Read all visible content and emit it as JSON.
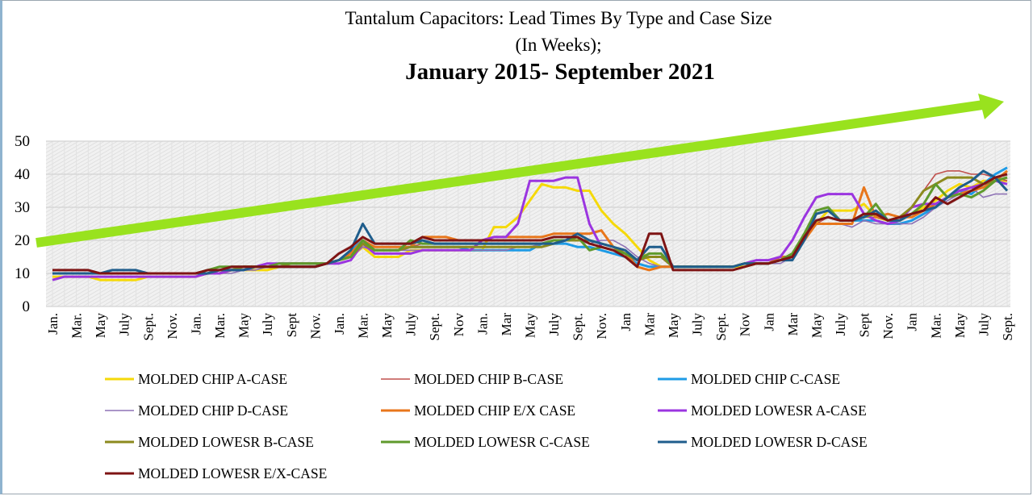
{
  "chart_data": {
    "type": "line",
    "title": "Tantalum  Capacitors: Lead Times By Type and Case Size",
    "subtitle": "(In Weeks);",
    "date_range": "January 2015- September 2021",
    "xlabel": "",
    "ylabel": "",
    "ylim": [
      0,
      50
    ],
    "yticks": [
      0,
      10,
      20,
      30,
      40,
      50
    ],
    "grid": true,
    "legend_position": "bottom",
    "x_period": "monthly, Jan 2015 - Sept 2021",
    "xtick_labels": [
      "Jan.",
      "Mar.",
      "May",
      "July",
      "Sept.",
      "Nov.",
      "Jan.",
      "Mar.",
      "May",
      "July",
      "Sept",
      "Nov.",
      "Jan.",
      "Mar.",
      "May",
      "July",
      "Sept.",
      "Nov",
      "Jan.",
      "Mar",
      "May",
      "July",
      "Sept.",
      "Nov.",
      "Jan",
      "Mar",
      "May",
      "July",
      "Sept.",
      "Nov",
      "Jan",
      "Mar",
      "May",
      "July",
      "Sept",
      "Nov.",
      "Jan",
      "Mar.",
      "May",
      "July",
      "Sept."
    ],
    "trend_arrow_color": "#99e21e",
    "series": [
      {
        "name": "MOLDED CHIP A-CASE",
        "color": "#f5d90a",
        "thin": false,
        "values": [
          9,
          9,
          9,
          9,
          8,
          8,
          8,
          8,
          9,
          9,
          9,
          9,
          9,
          10,
          10,
          11,
          11,
          11,
          11,
          12,
          12,
          12,
          12,
          13,
          14,
          15,
          18,
          15,
          15,
          15,
          17,
          17,
          17,
          17,
          17,
          17,
          17,
          24,
          24,
          27,
          32,
          37,
          36,
          36,
          35,
          35,
          29,
          25,
          22,
          18,
          14,
          12,
          12,
          12,
          12,
          12,
          12,
          12,
          12,
          13,
          13,
          14,
          15,
          21,
          25,
          29,
          29,
          29,
          31,
          27,
          26,
          27,
          28,
          30,
          32,
          35,
          37,
          36,
          38,
          38,
          38
        ]
      },
      {
        "name": "MOLDED CHIP B-CASE",
        "color": "#c0504d",
        "thin": true,
        "values": [
          10,
          10,
          10,
          10,
          10,
          10,
          10,
          10,
          10,
          10,
          10,
          10,
          10,
          10,
          11,
          11,
          12,
          12,
          12,
          12,
          13,
          13,
          13,
          13,
          14,
          16,
          20,
          18,
          18,
          18,
          18,
          19,
          19,
          19,
          19,
          19,
          19,
          19,
          19,
          19,
          19,
          19,
          20,
          20,
          20,
          20,
          19,
          18,
          16,
          13,
          12,
          12,
          12,
          12,
          12,
          12,
          12,
          12,
          13,
          13,
          13,
          14,
          16,
          21,
          25,
          27,
          26,
          26,
          27,
          27,
          26,
          27,
          30,
          35,
          40,
          41,
          41,
          40,
          40,
          39,
          38
        ]
      },
      {
        "name": "MOLDED CHIP C-CASE",
        "color": "#1e9be6",
        "thin": false,
        "values": [
          10,
          10,
          10,
          10,
          10,
          10,
          10,
          10,
          10,
          10,
          10,
          10,
          10,
          10,
          11,
          11,
          11,
          12,
          12,
          12,
          12,
          12,
          12,
          13,
          14,
          17,
          20,
          17,
          17,
          17,
          18,
          18,
          18,
          18,
          18,
          17,
          17,
          17,
          17,
          17,
          17,
          19,
          19,
          19,
          18,
          18,
          17,
          16,
          15,
          13,
          12,
          12,
          12,
          12,
          12,
          12,
          12,
          12,
          13,
          13,
          13,
          14,
          15,
          20,
          26,
          27,
          26,
          26,
          26,
          26,
          25,
          25,
          26,
          28,
          30,
          33,
          35,
          34,
          37,
          40,
          42
        ]
      },
      {
        "name": "MOLDED CHIP D-CASE",
        "color": "#8e72b5",
        "thin": true,
        "values": [
          10,
          10,
          10,
          10,
          10,
          10,
          10,
          10,
          10,
          10,
          10,
          10,
          10,
          10,
          10,
          10,
          11,
          11,
          12,
          12,
          13,
          13,
          13,
          13,
          14,
          15,
          18,
          17,
          17,
          17,
          17,
          17,
          17,
          17,
          17,
          17,
          17,
          17,
          17,
          18,
          18,
          19,
          20,
          20,
          20,
          19,
          20,
          20,
          18,
          15,
          13,
          12,
          12,
          12,
          12,
          12,
          12,
          12,
          13,
          13,
          13,
          13,
          15,
          20,
          25,
          25,
          25,
          24,
          26,
          25,
          25,
          25,
          25,
          27,
          30,
          32,
          34,
          36,
          33,
          34,
          34
        ]
      },
      {
        "name": "MOLDED CHIP E/X CASE",
        "color": "#e8761b",
        "thin": false,
        "values": [
          10,
          10,
          10,
          10,
          10,
          10,
          10,
          10,
          10,
          10,
          10,
          10,
          10,
          10,
          10,
          11,
          12,
          12,
          12,
          12,
          12,
          12,
          12,
          13,
          14,
          16,
          20,
          18,
          18,
          18,
          18,
          21,
          21,
          21,
          20,
          20,
          20,
          21,
          21,
          21,
          21,
          21,
          22,
          22,
          22,
          22,
          23,
          18,
          16,
          12,
          11,
          12,
          12,
          12,
          12,
          12,
          12,
          12,
          13,
          13,
          13,
          15,
          15,
          20,
          25,
          25,
          25,
          25,
          36,
          27,
          28,
          27,
          27,
          29,
          31,
          33,
          34,
          35,
          36,
          38,
          41
        ]
      },
      {
        "name": "MOLDED LOWESR A-CASE",
        "color": "#9b35e0",
        "thin": false,
        "values": [
          8,
          9,
          9,
          9,
          9,
          9,
          9,
          9,
          9,
          9,
          9,
          9,
          9,
          10,
          10,
          11,
          11,
          12,
          13,
          13,
          13,
          13,
          13,
          13,
          13,
          14,
          19,
          16,
          16,
          16,
          16,
          17,
          17,
          17,
          17,
          17,
          20,
          21,
          21,
          25,
          38,
          38,
          38,
          39,
          39,
          25,
          18,
          17,
          16,
          14,
          15,
          15,
          12,
          12,
          12,
          12,
          12,
          12,
          13,
          14,
          14,
          15,
          20,
          27,
          33,
          34,
          34,
          34,
          28,
          26,
          25,
          26,
          30,
          31,
          31,
          33,
          35,
          36,
          37,
          38,
          37
        ]
      },
      {
        "name": "MOLDED LOWESR B-CASE",
        "color": "#8c8a1e",
        "thin": false,
        "values": [
          10,
          10,
          10,
          10,
          10,
          10,
          10,
          10,
          10,
          10,
          10,
          10,
          10,
          10,
          11,
          11,
          12,
          12,
          12,
          12,
          13,
          13,
          13,
          13,
          14,
          15,
          19,
          17,
          17,
          17,
          18,
          18,
          18,
          18,
          18,
          18,
          18,
          18,
          18,
          18,
          18,
          18,
          19,
          20,
          20,
          20,
          19,
          18,
          16,
          14,
          15,
          15,
          12,
          12,
          12,
          12,
          12,
          12,
          13,
          13,
          13,
          14,
          16,
          21,
          28,
          29,
          26,
          26,
          27,
          28,
          26,
          27,
          30,
          35,
          37,
          39,
          39,
          39,
          37,
          38,
          39
        ]
      },
      {
        "name": "MOLDED LOWESR C-CASE",
        "color": "#5f9a2c",
        "thin": false,
        "values": [
          10,
          10,
          10,
          10,
          10,
          10,
          10,
          10,
          10,
          10,
          10,
          10,
          10,
          11,
          12,
          12,
          12,
          12,
          12,
          13,
          13,
          13,
          13,
          13,
          14,
          15,
          20,
          17,
          17,
          17,
          20,
          19,
          19,
          19,
          19,
          19,
          19,
          19,
          19,
          19,
          19,
          19,
          20,
          20,
          21,
          17,
          18,
          17,
          16,
          14,
          16,
          16,
          12,
          12,
          12,
          12,
          12,
          12,
          13,
          13,
          13,
          14,
          16,
          22,
          29,
          30,
          26,
          26,
          27,
          31,
          26,
          26,
          28,
          31,
          37,
          33,
          34,
          33,
          35,
          38,
          39
        ]
      },
      {
        "name": "MOLDED LOWESR D-CASE",
        "color": "#1f5d8c",
        "thin": false,
        "values": [
          10,
          10,
          10,
          10,
          10,
          11,
          11,
          11,
          10,
          10,
          10,
          10,
          10,
          10,
          11,
          11,
          11,
          12,
          12,
          12,
          12,
          12,
          12,
          13,
          14,
          17,
          25,
          19,
          19,
          19,
          19,
          20,
          19,
          19,
          19,
          19,
          19,
          19,
          19,
          19,
          19,
          19,
          19,
          20,
          22,
          20,
          19,
          18,
          17,
          14,
          18,
          18,
          12,
          12,
          12,
          12,
          12,
          12,
          13,
          13,
          13,
          14,
          14,
          20,
          28,
          29,
          26,
          26,
          27,
          29,
          26,
          26,
          28,
          29,
          30,
          33,
          36,
          38,
          41,
          39,
          35
        ]
      },
      {
        "name": "MOLDED LOWESR E/X-CASE",
        "color": "#7e1414",
        "thin": false,
        "values": [
          11,
          11,
          11,
          11,
          10,
          10,
          10,
          10,
          10,
          10,
          10,
          10,
          10,
          11,
          11,
          12,
          12,
          12,
          12,
          12,
          12,
          12,
          12,
          13,
          16,
          18,
          21,
          19,
          19,
          19,
          19,
          21,
          20,
          20,
          20,
          20,
          20,
          20,
          20,
          20,
          20,
          20,
          21,
          21,
          21,
          19,
          18,
          17,
          15,
          12,
          22,
          22,
          11,
          11,
          11,
          11,
          11,
          11,
          12,
          13,
          13,
          14,
          15,
          21,
          26,
          27,
          26,
          26,
          28,
          28,
          26,
          27,
          28,
          29,
          33,
          31,
          33,
          35,
          37,
          39,
          40
        ]
      }
    ]
  }
}
